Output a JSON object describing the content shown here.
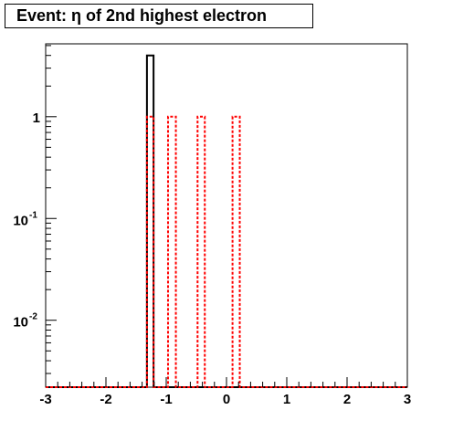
{
  "chart_data": {
    "type": "histogram",
    "title": "Event: η of 2nd highest electron",
    "xlabel": "",
    "ylabel": "",
    "xlim": [
      -3,
      3
    ],
    "x_ticks": [
      "-3",
      "-2",
      "-1",
      "0",
      "1",
      "2",
      "3"
    ],
    "y_scale": "log",
    "ylim": [
      0.0022,
      5.2
    ],
    "y_ticks": [
      {
        "value": 1,
        "base": "1",
        "exp": ""
      },
      {
        "value": 0.1,
        "base": "10",
        "exp": "-1"
      },
      {
        "value": 0.01,
        "base": "10",
        "exp": "-2"
      }
    ],
    "grid": false,
    "series": [
      {
        "style": "solid",
        "color": "#000000",
        "bins": [
          {
            "x0": -1.32,
            "x1": -1.21,
            "value": 4
          }
        ]
      },
      {
        "style": "dotted",
        "color": "#ff0000",
        "bins": [
          {
            "x0": -1.32,
            "x1": -1.21,
            "value": 1
          },
          {
            "x0": -0.97,
            "x1": -0.84,
            "value": 1
          },
          {
            "x0": -0.48,
            "x1": -0.36,
            "value": 1
          },
          {
            "x0": 0.1,
            "x1": 0.22,
            "value": 1
          }
        ]
      }
    ]
  }
}
